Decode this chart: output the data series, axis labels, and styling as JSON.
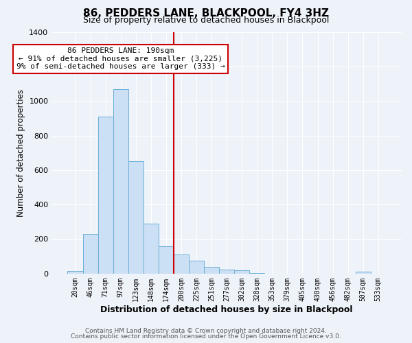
{
  "title": "86, PEDDERS LANE, BLACKPOOL, FY4 3HZ",
  "subtitle": "Size of property relative to detached houses in Blackpool",
  "xlabel": "Distribution of detached houses by size in Blackpool",
  "ylabel": "Number of detached properties",
  "bar_labels": [
    "20sqm",
    "46sqm",
    "71sqm",
    "97sqm",
    "123sqm",
    "148sqm",
    "174sqm",
    "200sqm",
    "225sqm",
    "251sqm",
    "277sqm",
    "302sqm",
    "328sqm",
    "353sqm",
    "379sqm",
    "405sqm",
    "430sqm",
    "456sqm",
    "482sqm",
    "507sqm",
    "533sqm"
  ],
  "bar_values": [
    15,
    228,
    910,
    1070,
    650,
    290,
    160,
    110,
    73,
    40,
    25,
    18,
    5,
    0,
    0,
    0,
    0,
    0,
    0,
    10,
    0
  ],
  "bar_color": "#cce0f5",
  "bar_edge_color": "#6baed6",
  "vline_x_index": 7,
  "vline_color": "#cc0000",
  "annotation_title": "86 PEDDERS LANE: 190sqm",
  "annotation_line1": "← 91% of detached houses are smaller (3,225)",
  "annotation_line2": "9% of semi-detached houses are larger (333) →",
  "ylim": [
    0,
    1400
  ],
  "yticks": [
    0,
    200,
    400,
    600,
    800,
    1000,
    1200,
    1400
  ],
  "footer1": "Contains HM Land Registry data © Crown copyright and database right 2024.",
  "footer2": "Contains public sector information licensed under the Open Government Licence v3.0.",
  "background_color": "#eef2f9",
  "plot_background_color": "#eef2f9",
  "grid_color": "#ffffff"
}
